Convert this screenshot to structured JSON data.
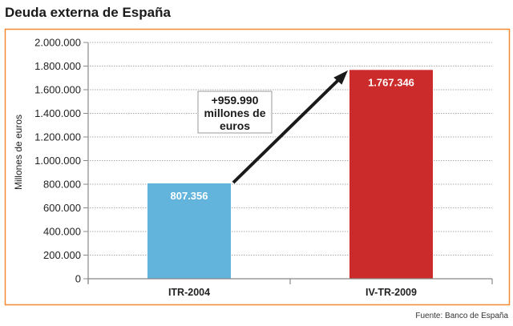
{
  "chart_data": {
    "type": "bar",
    "title": "Deuda externa de España",
    "ylabel": "Millones de euros",
    "xlabel": "",
    "categories": [
      "ITR-2004",
      "IV-TR-2009"
    ],
    "values": [
      807356,
      1767346
    ],
    "data_labels": [
      "807.356",
      "1.767.346"
    ],
    "colors": [
      "#62b4dc",
      "#cc2b2b"
    ],
    "ylim": [
      0,
      2000000
    ],
    "yticks": [
      0,
      200000,
      400000,
      600000,
      800000,
      1000000,
      1200000,
      1400000,
      1600000,
      1800000,
      2000000
    ],
    "ytick_labels": [
      "0",
      "200.000",
      "400.000",
      "600.000",
      "800.000",
      "1.000.000",
      "1.200.000",
      "1.400.000",
      "1.600.000",
      "1.800.000",
      "2.000.000"
    ],
    "grid": true,
    "annotation": {
      "lines": [
        "+959.990",
        "millones de",
        "euros"
      ]
    },
    "frame_color": "#f58a34",
    "source": "Fuente: Banco de España"
  }
}
